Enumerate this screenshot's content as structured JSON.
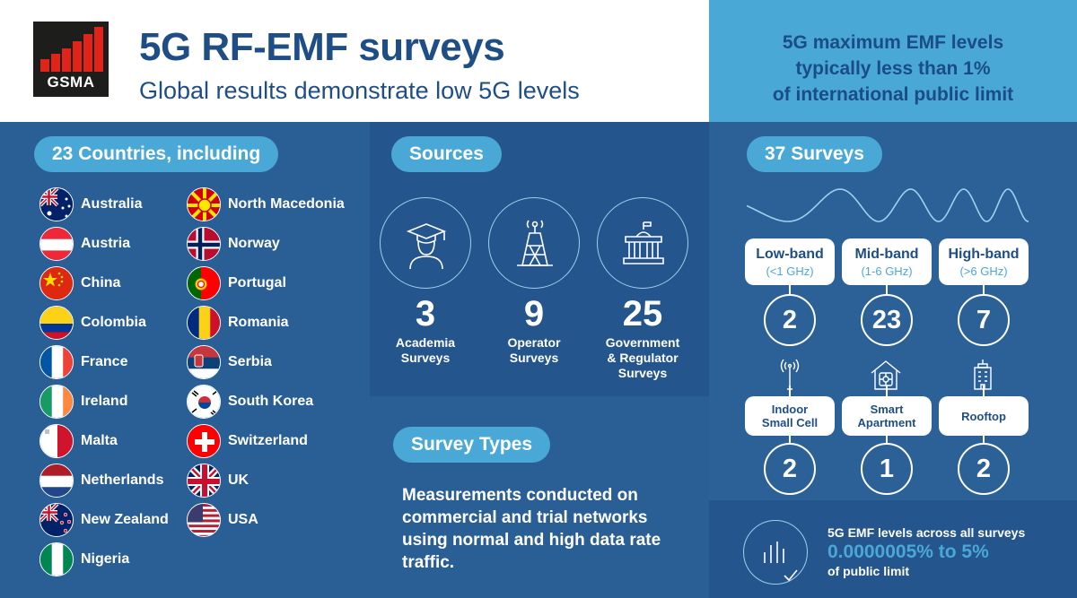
{
  "header": {
    "logo_text": "GSMA",
    "title": "5G RF-EMF surveys",
    "subtitle": "Global results demonstrate low 5G levels",
    "highlight_lines": [
      "5G maximum EMF levels",
      "typically less than 1%",
      "of international public limit"
    ]
  },
  "countries": {
    "heading": "23 Countries, including",
    "left_column": [
      "Australia",
      "Austria",
      "China",
      "Colombia",
      "France",
      "Ireland",
      "Malta",
      "Netherlands",
      "New Zealand",
      "Nigeria"
    ],
    "right_column": [
      "North Macedonia",
      "Norway",
      "Portugal",
      "Romania",
      "Serbia",
      "South Korea",
      "Switzerland",
      "UK",
      "USA"
    ]
  },
  "sources": {
    "heading": "Sources",
    "items": [
      {
        "icon": "graduate-icon",
        "count": "3",
        "label_lines": [
          "Academia",
          "Surveys"
        ]
      },
      {
        "icon": "antenna-tower-icon",
        "count": "9",
        "label_lines": [
          "Operator",
          "Surveys"
        ]
      },
      {
        "icon": "government-building-icon",
        "count": "25",
        "label_lines": [
          "Government",
          "& Regulator",
          "Surveys"
        ]
      }
    ]
  },
  "survey_types": {
    "heading": "Survey Types",
    "text": "Measurements conducted on commercial and trial networks using normal and high data rate traffic."
  },
  "surveys": {
    "heading": "37 Surveys",
    "bands": [
      {
        "name": "Low-band",
        "range": "(<1 GHz)",
        "count": "2"
      },
      {
        "name": "Mid-band",
        "range": "(1-6 GHz)",
        "count": "23"
      },
      {
        "name": "High-band",
        "range": "(>6 GHz)",
        "count": "7"
      }
    ],
    "types": [
      {
        "icon": "small-cell-antenna-icon",
        "label_lines": [
          "Indoor",
          "Small Cell"
        ],
        "count": "2"
      },
      {
        "icon": "smart-home-icon",
        "label_lines": [
          "Smart",
          "Apartment"
        ],
        "count": "1"
      },
      {
        "icon": "rooftop-building-icon",
        "label_lines": [
          "Rooftop"
        ],
        "count": "2"
      }
    ]
  },
  "levels": {
    "line1": "5G EMF levels across all surveys",
    "line2": "0.0000005% to 5%",
    "line3": "of public limit"
  }
}
